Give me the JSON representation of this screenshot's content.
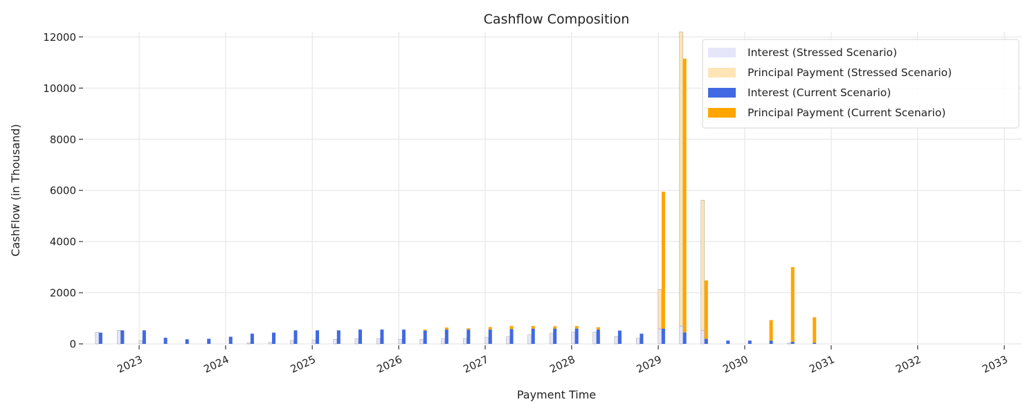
{
  "chart_data": {
    "type": "bar",
    "title": "Cashflow Composition",
    "xlabel": "Payment Time",
    "ylabel": "CashFlow (in Thousand)",
    "ylim": [
      0,
      12200
    ],
    "xlim": [
      "2022-05-15",
      "2033-03-15"
    ],
    "y_ticks": [
      0,
      2000,
      4000,
      6000,
      8000,
      10000,
      12000
    ],
    "x_ticks": [
      "2023",
      "2024",
      "2025",
      "2026",
      "2027",
      "2028",
      "2029",
      "2030",
      "2031",
      "2032",
      "2033"
    ],
    "stacked": true,
    "grid": true,
    "legend_position": "top-right",
    "dates": [
      "2022-07-15",
      "2022-10-15",
      "2023-01-15",
      "2023-04-15",
      "2023-07-15",
      "2023-10-15",
      "2024-01-15",
      "2024-04-15",
      "2024-07-15",
      "2024-10-15",
      "2025-01-15",
      "2025-04-15",
      "2025-07-15",
      "2025-10-15",
      "2026-01-15",
      "2026-04-15",
      "2026-07-15",
      "2026-10-15",
      "2027-01-15",
      "2027-04-15",
      "2027-07-15",
      "2027-10-15",
      "2028-01-15",
      "2028-04-15",
      "2028-07-15",
      "2028-10-15",
      "2029-01-15",
      "2029-04-15",
      "2029-07-15",
      "2029-10-15",
      "2030-01-15",
      "2030-04-15",
      "2030-07-15",
      "2030-10-15"
    ],
    "series": [
      {
        "name": "Interest (Stressed Scenario)",
        "color": "#e6e6fa",
        "stack": "stressed",
        "values": [
          450,
          530,
          130,
          0,
          0,
          0,
          0,
          40,
          60,
          130,
          150,
          180,
          200,
          200,
          180,
          180,
          200,
          200,
          250,
          280,
          360,
          410,
          460,
          460,
          290,
          220,
          580,
          700,
          520,
          0,
          0,
          0,
          30,
          0
        ]
      },
      {
        "name": "Principal Payment (Stressed Scenario)",
        "color": "#ffe4b5",
        "stack": "stressed",
        "values": [
          0,
          0,
          0,
          0,
          0,
          0,
          0,
          0,
          0,
          0,
          0,
          0,
          0,
          0,
          0,
          0,
          0,
          0,
          0,
          0,
          0,
          0,
          0,
          0,
          0,
          0,
          1550,
          11500,
          5100,
          0,
          0,
          0,
          0,
          0
        ]
      },
      {
        "name": "Interest (Current Scenario)",
        "color": "#4169e1",
        "stack": "current",
        "values": [
          440,
          530,
          530,
          240,
          180,
          200,
          280,
          400,
          440,
          530,
          530,
          530,
          560,
          560,
          560,
          520,
          560,
          560,
          560,
          580,
          600,
          600,
          600,
          560,
          520,
          400,
          600,
          450,
          200,
          130,
          130,
          130,
          80,
          40
        ]
      },
      {
        "name": "Principal Payment (Current Scenario)",
        "color": "#ffa500",
        "stack": "current",
        "values": [
          0,
          0,
          0,
          0,
          0,
          0,
          0,
          0,
          0,
          0,
          0,
          0,
          0,
          0,
          0,
          40,
          80,
          50,
          100,
          120,
          100,
          90,
          100,
          90,
          0,
          0,
          5350,
          10700,
          2280,
          0,
          0,
          800,
          2920,
          1000
        ]
      }
    ]
  }
}
